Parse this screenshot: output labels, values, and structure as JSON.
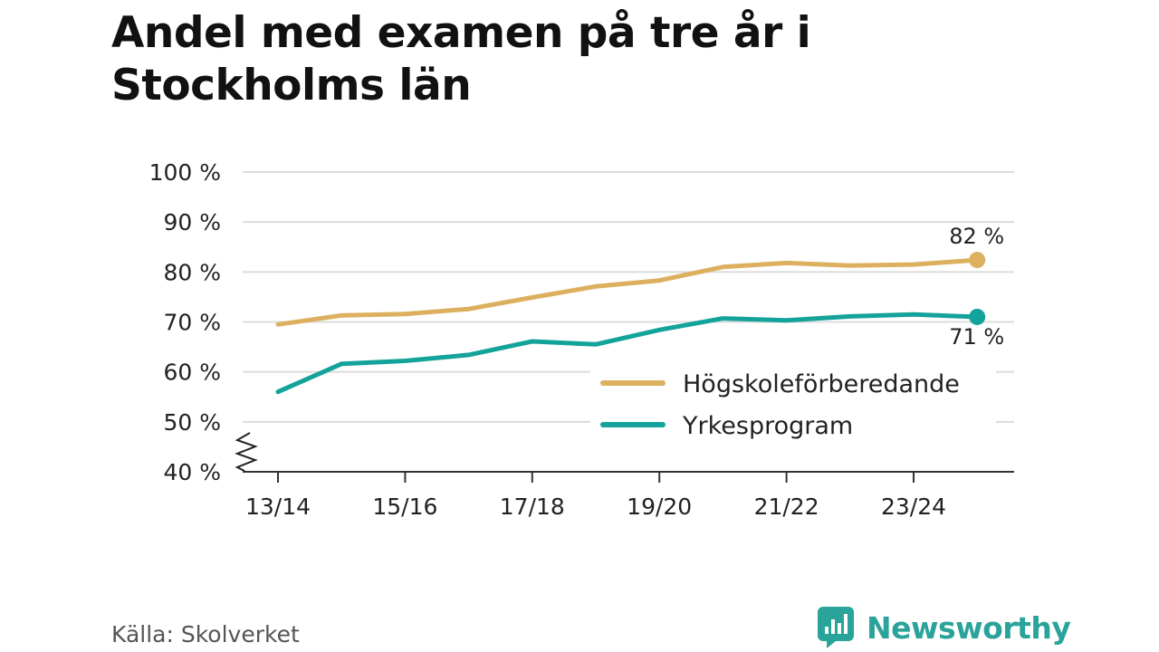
{
  "title": "Andel med examen på tre år i Stockholms län",
  "source": "Källa: Skolverket",
  "brand": {
    "name": "Newsworthy",
    "icon": "newsworthy-logo-icon",
    "color": "#2aa39a"
  },
  "colors": {
    "hogskole": "#dcb05f",
    "yrkes": "#14a39a",
    "axis": "#333333",
    "grid": "#dcdcdc"
  },
  "chart_data": {
    "type": "line",
    "x": [
      "13/14",
      "14/15",
      "15/16",
      "16/17",
      "17/18",
      "18/19",
      "19/20",
      "20/21",
      "21/22",
      "22/23",
      "23/24",
      "24/25"
    ],
    "x_tick_labels": [
      "13/14",
      "15/16",
      "17/18",
      "19/20",
      "21/22",
      "23/24"
    ],
    "y_tick_labels": [
      "40 %",
      "50 %",
      "60 %",
      "70 %",
      "80 %",
      "90 %",
      "100 %"
    ],
    "ylim": [
      40,
      100
    ],
    "axis_break": true,
    "grid": true,
    "legend_position": "inside-lower-right",
    "series": [
      {
        "name": "Högskoleförberedande",
        "color": "#dcb05f",
        "values": [
          69.5,
          71.3,
          71.6,
          72.6,
          74.9,
          77.1,
          78.3,
          81.0,
          81.8,
          81.3,
          81.5,
          82.4
        ],
        "end_label": "82 %"
      },
      {
        "name": "Yrkesprogram",
        "color": "#14a39a",
        "values": [
          56.0,
          61.6,
          62.2,
          63.4,
          66.1,
          65.5,
          68.4,
          70.7,
          70.3,
          71.1,
          71.5,
          71.0
        ],
        "end_label": "71 %"
      }
    ]
  }
}
